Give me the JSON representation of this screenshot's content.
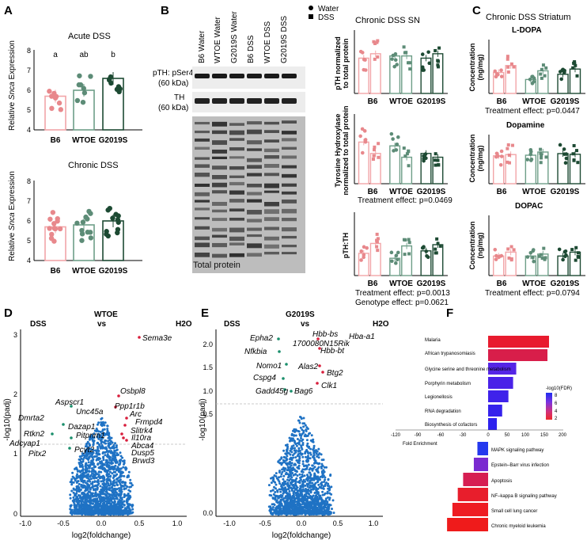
{
  "panel_labels": {
    "a": "A",
    "b": "B",
    "c": "C",
    "d": "D",
    "e": "E",
    "f": "F"
  },
  "colors": {
    "b6_bar": "#f2a5a8",
    "b6_dot": "#e8888c",
    "wtoe_bar": "#6e9e88",
    "wtoe_dot": "#5d8c77",
    "g2019s_bar": "#1d4a33",
    "g2019s_dot": "#1d4a33",
    "volcano_dot": "#1f72c4",
    "volcano_sig_up": "#d81e3c",
    "volcano_sig_down": "#1b8f6c"
  },
  "panelA": {
    "ylabel_pre": "Relative ",
    "ylabel_ital": "Snca",
    "ylabel_post": " Expression",
    "xcats": [
      "B6",
      "WTOE",
      "G2019S"
    ],
    "acute": {
      "title": "Acute DSS",
      "sig": [
        "a",
        "ab",
        "b"
      ]
    },
    "chronic": {
      "title": "Chronic DSS"
    }
  },
  "panelB": {
    "lanes": [
      "B6 Water",
      "WTOE Water",
      "G2019S Water",
      "B6 DSS",
      "WTOE DSS",
      "G2019S DSS"
    ],
    "band1_l1": "pTH: pSer40",
    "band1_l2": "(60 kDa)",
    "band2_l1": "TH",
    "band2_l2": "(60 kDa)",
    "total": "Total protein",
    "legend_water": "Water",
    "legend_dss": "DSS",
    "sn_title": "Chronic DSS SN",
    "sn1_y1": "pTH normalized",
    "sn1_y2": "to total protein",
    "sn2_y1": "Tyrosine Hydroxylase",
    "sn2_y2": "normalized to total protein",
    "sn3_y": "pTH:TH",
    "xcats": [
      "B6",
      "WTOE",
      "G2019S"
    ],
    "stat1": "Treatment effect: p=0.0469",
    "stat2a": "Treatment effect: p=0.0013",
    "stat2b": "Genotype effect: p=0.0621"
  },
  "panelC": {
    "title": "Chronic DSS Striatum",
    "conc1": "Concentration",
    "conc2": "(ng/mg)",
    "sub1": "L-DOPA",
    "sub2": "Dopamine",
    "sub3": "DOPAC",
    "xcats": [
      "B6",
      "WTOE",
      "G2019S"
    ],
    "stat1": "Treatment effect: p=0.0447",
    "stat3": "Treatment effect: p=0.0794"
  },
  "panelD": {
    "left": "DSS",
    "vs": "vs",
    "right": "H2O",
    "title": "WTOE",
    "ylabel": "-log10(padj)",
    "xlabel": "log2(foldchange)",
    "genes": [
      "Sema3e",
      "Osbpl8",
      "Ppp1r1b",
      "Arc",
      "Frmpd4",
      "Slitrk4",
      "Il10ra",
      "Abca4",
      "Dusp5",
      "Brwd3",
      "Aspscr1",
      "Unc45a",
      "Dazap1",
      "Pitpnm1",
      "Dmrta2",
      "Rtkn2",
      "Adcyap1",
      "Pitx2",
      "Pcyt2"
    ]
  },
  "panelE": {
    "left": "DSS",
    "vs": "vs",
    "right": "H2O",
    "title": "G2019S",
    "ylabel": "-log10(padj)",
    "xlabel": "log2(foldchange)",
    "genes": [
      "Hbb-bs",
      "1700080N15Rik",
      "Hbb-bt",
      "Hba-a1",
      "Epha2",
      "Nfkbia",
      "Nomo1",
      "Alas2",
      "Btg2",
      "Cspg4",
      "Clk1",
      "Gadd45g",
      "Bag6"
    ]
  },
  "panelF": {
    "legend_title": "-log10(FDR)",
    "legend_ticks": [
      "8",
      "6",
      "4",
      "2"
    ],
    "x_axis_label": "Fold Enrichment",
    "xticks": [
      "-120",
      "-90",
      "-60",
      "-30",
      "0",
      "50",
      "100",
      "150",
      "200"
    ],
    "up_terms": [
      "Malaria",
      "African trypanosomiasis",
      "Glycine serine and threonine metabolism",
      "Porphyrin metabolism",
      "Legionellosis",
      "RNA degradation",
      "Biosynthesis of cofactors"
    ],
    "down_terms": [
      "MAPK signaling pathway",
      "Epstein–Barr virus infection",
      "Apoptosis",
      "NF–kappa B signaling pathway",
      "Small cell lung cancer",
      "Chronic myeloid leukemia"
    ]
  },
  "chart_data": [
    {
      "type": "bar",
      "title": "Acute DSS",
      "categories": [
        "B6",
        "WTOE",
        "G2019S"
      ],
      "values": [
        5.7,
        6.0,
        6.6
      ],
      "ylabel": "Relative Snca Expression",
      "ylim": [
        4,
        8
      ]
    },
    {
      "type": "bar",
      "title": "Chronic DSS",
      "categories": [
        "B6",
        "WTOE",
        "G2019S"
      ],
      "values": [
        5.7,
        5.8,
        6.0
      ],
      "ylabel": "Relative Snca Expression",
      "ylim": [
        4,
        8
      ]
    },
    {
      "type": "bar",
      "title": "Chronic DSS SN",
      "categories": [
        "B6",
        "WTOE",
        "G2019S"
      ],
      "series": [
        {
          "name": "Water",
          "values": [
            8,
            8.5,
            8
          ]
        },
        {
          "name": "DSS",
          "values": [
            9,
            8.5,
            9
          ]
        }
      ],
      "ylabel": "pTH normalized to total protein"
    },
    {
      "type": "bar",
      "categories": [
        "B6",
        "WTOE",
        "G2019S"
      ],
      "series": [
        {
          "name": "Water",
          "values": [
            5.5,
            5,
            4
          ]
        },
        {
          "name": "DSS",
          "values": [
            4,
            3.5,
            3.5
          ]
        }
      ],
      "ylabel": "Tyrosine Hydroxylase normalized to total protein"
    },
    {
      "type": "bar",
      "categories": [
        "B6",
        "WTOE",
        "G2019S"
      ],
      "series": [
        {
          "name": "Water",
          "values": [
            1.8,
            1.4,
            2.0
          ]
        },
        {
          "name": "DSS",
          "values": [
            2.6,
            2.4,
            2.5
          ]
        }
      ],
      "ylabel": "pTH:TH"
    },
    {
      "type": "bar",
      "title": "L-DOPA",
      "categories": [
        "B6",
        "WTOE",
        "G2019S"
      ],
      "series": [
        {
          "name": "Water",
          "values": [
            0.12,
            0.08,
            0.11
          ]
        },
        {
          "name": "DSS",
          "values": [
            0.16,
            0.13,
            0.14
          ]
        }
      ],
      "ylabel": "Concentration (ng/mg)"
    },
    {
      "type": "bar",
      "title": "Dopamine",
      "categories": [
        "B6",
        "WTOE",
        "G2019S"
      ],
      "series": [
        {
          "name": "Water",
          "values": [
            88,
            90,
            95
          ]
        },
        {
          "name": "DSS",
          "values": [
            92,
            100,
            93
          ]
        }
      ],
      "ylabel": "Concentration (ng/mg)"
    },
    {
      "type": "bar",
      "title": "DOPAC",
      "categories": [
        "B6",
        "WTOE",
        "G2019S"
      ],
      "series": [
        {
          "name": "Water",
          "values": [
            10,
            10,
            10
          ]
        },
        {
          "name": "DSS",
          "values": [
            12,
            11,
            12
          ]
        }
      ],
      "ylabel": "Concentration (ng/mg)"
    },
    {
      "type": "scatter",
      "title": "WTOE",
      "xlabel": "log2(foldchange)",
      "ylabel": "-log10(padj)",
      "xlim": [
        -1.0,
        1.0
      ],
      "ylim": [
        0,
        3.4
      ]
    },
    {
      "type": "scatter",
      "title": "G2019S",
      "xlabel": "log2(foldchange)",
      "ylabel": "-log10(padj)",
      "xlim": [
        -1.0,
        1.0
      ],
      "ylim": [
        0,
        2.2
      ]
    },
    {
      "type": "bar",
      "xlabel": "Fold Enrichment",
      "categories": [
        "Malaria",
        "African trypanosomiasis",
        "Glycine serine and threonine metabolism",
        "Porphyrin metabolism",
        "Legionellosis",
        "RNA degradation",
        "Biosynthesis of cofactors",
        "MAPK signaling pathway",
        "Epstein–Barr virus infection",
        "Apoptosis",
        "NF–kappa B signaling pathway",
        "Small cell lung cancer",
        "Chronic myeloid leukemia"
      ],
      "values": [
        195,
        190,
        90,
        80,
        65,
        45,
        28,
        -30,
        -40,
        -70,
        -85,
        -100,
        -115
      ]
    }
  ]
}
